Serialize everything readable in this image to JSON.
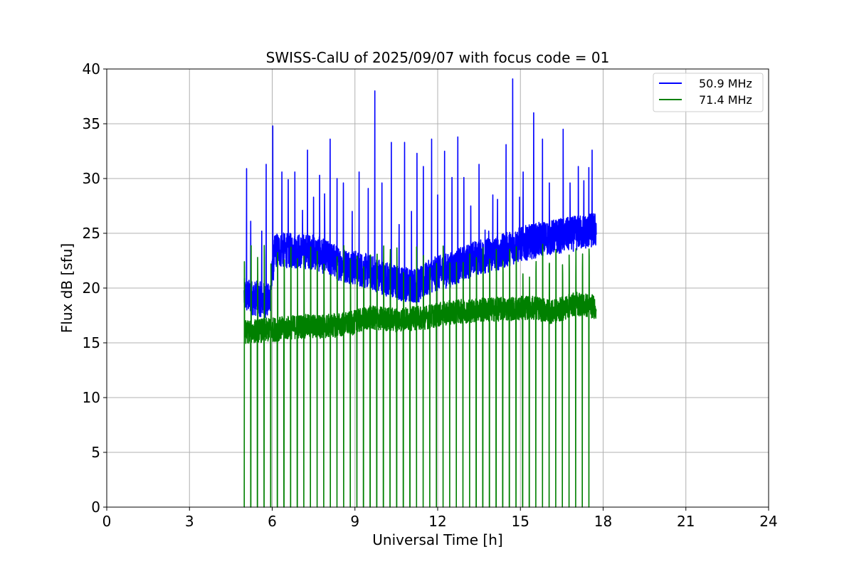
{
  "chart_data": {
    "type": "line",
    "title": "SWISS-CalU of 2025/09/07 with focus code = 01",
    "xlabel": "Universal Time [h]",
    "ylabel": "Flux dB [sfu]",
    "xlim": [
      0,
      24
    ],
    "ylim": [
      0,
      40
    ],
    "xticks": [
      0,
      3,
      6,
      9,
      12,
      15,
      18,
      21,
      24
    ],
    "yticks": [
      0,
      5,
      10,
      15,
      20,
      25,
      30,
      35,
      40
    ],
    "grid": true,
    "legend_position": "top-right",
    "time_range": [
      4.98,
      17.75
    ],
    "series": [
      {
        "name": "50.9 MHz",
        "color": "#0000ff",
        "baseline": [
          [
            4.98,
            19.3
          ],
          [
            5.9,
            18.8
          ],
          [
            6.1,
            23.5
          ],
          [
            7.5,
            23.3
          ],
          [
            8.5,
            22.2
          ],
          [
            9.5,
            21.5
          ],
          [
            10.5,
            20.5
          ],
          [
            11.3,
            20.2
          ],
          [
            11.8,
            21.2
          ],
          [
            12.5,
            21.7
          ],
          [
            13.3,
            22.7
          ],
          [
            14.2,
            23.2
          ],
          [
            15.0,
            24.0
          ],
          [
            16.0,
            24.6
          ],
          [
            16.8,
            24.9
          ],
          [
            17.7,
            25.3
          ]
        ],
        "spikes": [
          [
            5.07,
            30.9
          ],
          [
            5.22,
            26.1
          ],
          [
            5.62,
            25.2
          ],
          [
            5.78,
            31.3
          ],
          [
            6.02,
            34.8
          ],
          [
            6.35,
            30.6
          ],
          [
            6.58,
            29.9
          ],
          [
            6.82,
            30.6
          ],
          [
            7.1,
            27.1
          ],
          [
            7.28,
            32.6
          ],
          [
            7.5,
            28.3
          ],
          [
            7.72,
            30.3
          ],
          [
            7.9,
            28.6
          ],
          [
            8.1,
            33.6
          ],
          [
            8.35,
            30.0
          ],
          [
            8.58,
            29.6
          ],
          [
            8.9,
            27.0
          ],
          [
            9.15,
            30.6
          ],
          [
            9.48,
            29.1
          ],
          [
            9.72,
            38.0
          ],
          [
            9.98,
            29.6
          ],
          [
            10.32,
            33.3
          ],
          [
            10.6,
            25.8
          ],
          [
            10.8,
            33.3
          ],
          [
            11.05,
            27.0
          ],
          [
            11.25,
            32.3
          ],
          [
            11.48,
            31.1
          ],
          [
            11.78,
            33.6
          ],
          [
            12.0,
            28.5
          ],
          [
            12.25,
            32.5
          ],
          [
            12.52,
            30.1
          ],
          [
            12.73,
            33.8
          ],
          [
            12.95,
            30.1
          ],
          [
            13.2,
            27.5
          ],
          [
            13.5,
            31.3
          ],
          [
            13.72,
            25.3
          ],
          [
            13.85,
            25.2
          ],
          [
            14.0,
            28.5
          ],
          [
            14.17,
            28.1
          ],
          [
            14.48,
            33.1
          ],
          [
            14.72,
            39.1
          ],
          [
            14.97,
            28.3
          ],
          [
            15.1,
            30.6
          ],
          [
            15.48,
            36.0
          ],
          [
            15.8,
            33.6
          ],
          [
            16.05,
            29.6
          ],
          [
            16.3,
            25.8
          ],
          [
            16.55,
            34.5
          ],
          [
            16.8,
            29.6
          ],
          [
            17.1,
            31.1
          ],
          [
            17.3,
            29.8
          ],
          [
            17.48,
            31.0
          ],
          [
            17.6,
            32.6
          ]
        ]
      },
      {
        "name": "71.4 MHz",
        "color": "#008000",
        "baseline": [
          [
            4.98,
            16.0
          ],
          [
            6.0,
            16.2
          ],
          [
            7.0,
            16.5
          ],
          [
            8.0,
            16.5
          ],
          [
            8.9,
            16.8
          ],
          [
            9.5,
            17.3
          ],
          [
            10.5,
            17.1
          ],
          [
            11.5,
            17.3
          ],
          [
            12.5,
            17.8
          ],
          [
            13.5,
            18.0
          ],
          [
            14.5,
            18.1
          ],
          [
            15.5,
            18.2
          ],
          [
            16.2,
            17.8
          ],
          [
            17.0,
            18.6
          ],
          [
            17.7,
            18.3
          ]
        ],
        "spikes_top": 22.5,
        "pulse_count": 53
      }
    ]
  }
}
